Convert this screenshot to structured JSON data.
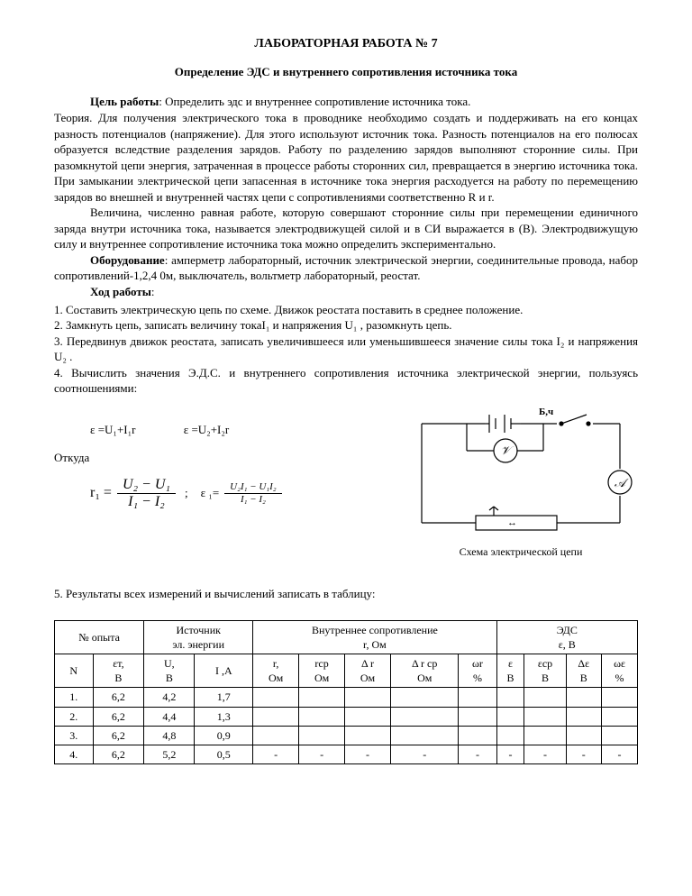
{
  "title": "ЛАБОРАТОРНАЯ РАБОТА № 7",
  "subtitle": "Определение ЭДС и внутреннего сопротивления источника тока",
  "goal_label": "Цель работы",
  "goal_text": ": Определить эдс и внутреннее сопротивление источника тока.",
  "theory": "Теория. Для получения электрического тока в проводнике необходимо создать и поддерживать на его концах разность потенциалов (напряжение). Для этого используют источник тока. Разность потенциалов на его полюсах образуется вследствие разделения зарядов. Работу по разделению зарядов выполняют сторонние силы. При разомкнутой цепи энергия, затраченная в процессе работы сторонних сил, превращается в энергию источника тока. При замыкании электрической цепи запасенная в источнике тока энергия расходуется на работу по перемещению зарядов во внешней и внутренней частях цепи с сопротивлениями соответственно R и r.",
  "theory2": "Величина, численно равная работе, которую совершают сторонние силы при перемещении единичного заряда внутри источника тока, называется электродвижущей силой и в СИ выражается в (В). Электродвижущую силу и внутреннее сопротивление источника тока можно определить экспериментально.",
  "equip_label": "Оборудование",
  "equip_text": ": амперметр лабораторный, источник электрической энергии, соединительные провода, набор сопротивлений-1,2,4  0м, выключатель, вольтметр лабораторный, реостат.",
  "procedure_label": "Ход работы",
  "steps": {
    "s1": "1. Составить электрическую  цепь по схеме. Движок реостата поставить в среднее положение.",
    "s2": "2. Замкнуть цепь, записать величину токаI₁  и напряжения U₁  , разомкнуть цепь.",
    "s3": "3. Передвинув движок реостата, записать увеличившееся или уменьшившееся значение силы тока I₂   и напряжения U₂  .",
    "s4": "4. Вычислить значения  Э.Д.С. и внутреннего сопротивления источника электрической энергии, пользуясь соотношениями:"
  },
  "formula1": "ε =U₁+I₁r",
  "formula2": "ε =U₂+I₂r",
  "where": "Откуда",
  "r1_label": "r₁  =",
  "frac1_num": "U₂ − U₁",
  "frac1_den": "I₁ − I₂",
  "semicolon": ";",
  "eps_label": "ε ₁=",
  "frac2_num": "U₂I₁ − U₁I₂",
  "frac2_den": "I₁ − I₂",
  "diagram_caption": "Схема электрической цепи",
  "diagram_label_top": "Б,ч",
  "step5": "5. Результаты всех измерений и вычислений записать в таблицу:",
  "table": {
    "headers": {
      "exp_no": "№ опыта",
      "source": "Источник\nэл. энергии",
      "resistance": "Внутреннее сопротивление\nr, Ом",
      "emf": "ЭДС\nε,  В",
      "N": "N",
      "eps_t": "εт,\nВ",
      "U": "U,\nВ",
      "I": "I ,A",
      "r": "r,\nОм",
      "r_cp": "rср\nОм",
      "dr": "Δ r\nОм",
      "dr_cp": "Δ r ср\nОм",
      "omega_r": "ωr\n%",
      "eps": "ε\nВ",
      "eps_cp": "εср\nВ",
      "deps": "Δε\nВ",
      "omega_e": "ωε\n%"
    },
    "rows": [
      {
        "n": "1.",
        "et": "6,2",
        "u": "4,2",
        "i": "1,7",
        "r": "",
        "rcp": "",
        "dr": "",
        "drcp": "",
        "wr": "",
        "e": "",
        "ecp": "",
        "de": "",
        "we": ""
      },
      {
        "n": "2.",
        "et": "6,2",
        "u": "4,4",
        "i": "1,3",
        "r": "",
        "rcp": "",
        "dr": "",
        "drcp": "",
        "wr": "",
        "e": "",
        "ecp": "",
        "de": "",
        "we": ""
      },
      {
        "n": "3.",
        "et": "6,2",
        "u": "4,8",
        "i": "0,9",
        "r": "",
        "rcp": "",
        "dr": "",
        "drcp": "",
        "wr": "",
        "e": "",
        "ecp": "",
        "de": "",
        "we": ""
      },
      {
        "n": "4.",
        "et": "6,2",
        "u": "5,2",
        "i": "0,5",
        "r": "-",
        "rcp": "-",
        "dr": "-",
        "drcp": "-",
        "wr": "-",
        "e": "-",
        "ecp": "-",
        "de": "-",
        "we": "-"
      }
    ]
  }
}
